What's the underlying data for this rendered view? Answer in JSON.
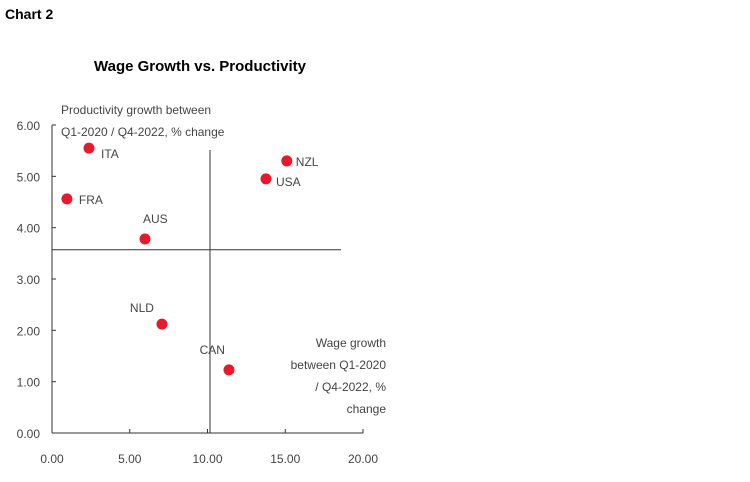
{
  "header": {
    "label": "Chart 2"
  },
  "chart_data": {
    "type": "scatter",
    "title": "Wage Growth vs. Productivity",
    "xlabel": [
      "Wage growth",
      "between Q1-2020",
      "/ Q4-2022, %",
      "change"
    ],
    "ylabel": [
      "Productivity growth between",
      "Q1-2020 / Q4-2022, % change"
    ],
    "xlim": [
      0,
      20
    ],
    "ylim": [
      0,
      6
    ],
    "x_ticks": [
      "0.00",
      "5.00",
      "10.00",
      "15.00",
      "20.00"
    ],
    "y_ticks": [
      "0.00",
      "1.00",
      "2.00",
      "3.00",
      "4.00",
      "5.00",
      "6.00"
    ],
    "grid": false,
    "legend": "none",
    "marker_color": "#e8192c",
    "reference_lines": {
      "x": 10.16,
      "y": 3.57
    },
    "points": [
      {
        "label": "ITA",
        "x": 2.38,
        "y": 5.55
      },
      {
        "label": "FRA",
        "x": 0.96,
        "y": 4.56
      },
      {
        "label": "AUS",
        "x": 5.98,
        "y": 3.78
      },
      {
        "label": "NLD",
        "x": 7.07,
        "y": 2.12
      },
      {
        "label": "CAN",
        "x": 11.38,
        "y": 1.23
      },
      {
        "label": "USA",
        "x": 13.76,
        "y": 4.95
      },
      {
        "label": "NZL",
        "x": 15.1,
        "y": 5.3
      }
    ]
  }
}
